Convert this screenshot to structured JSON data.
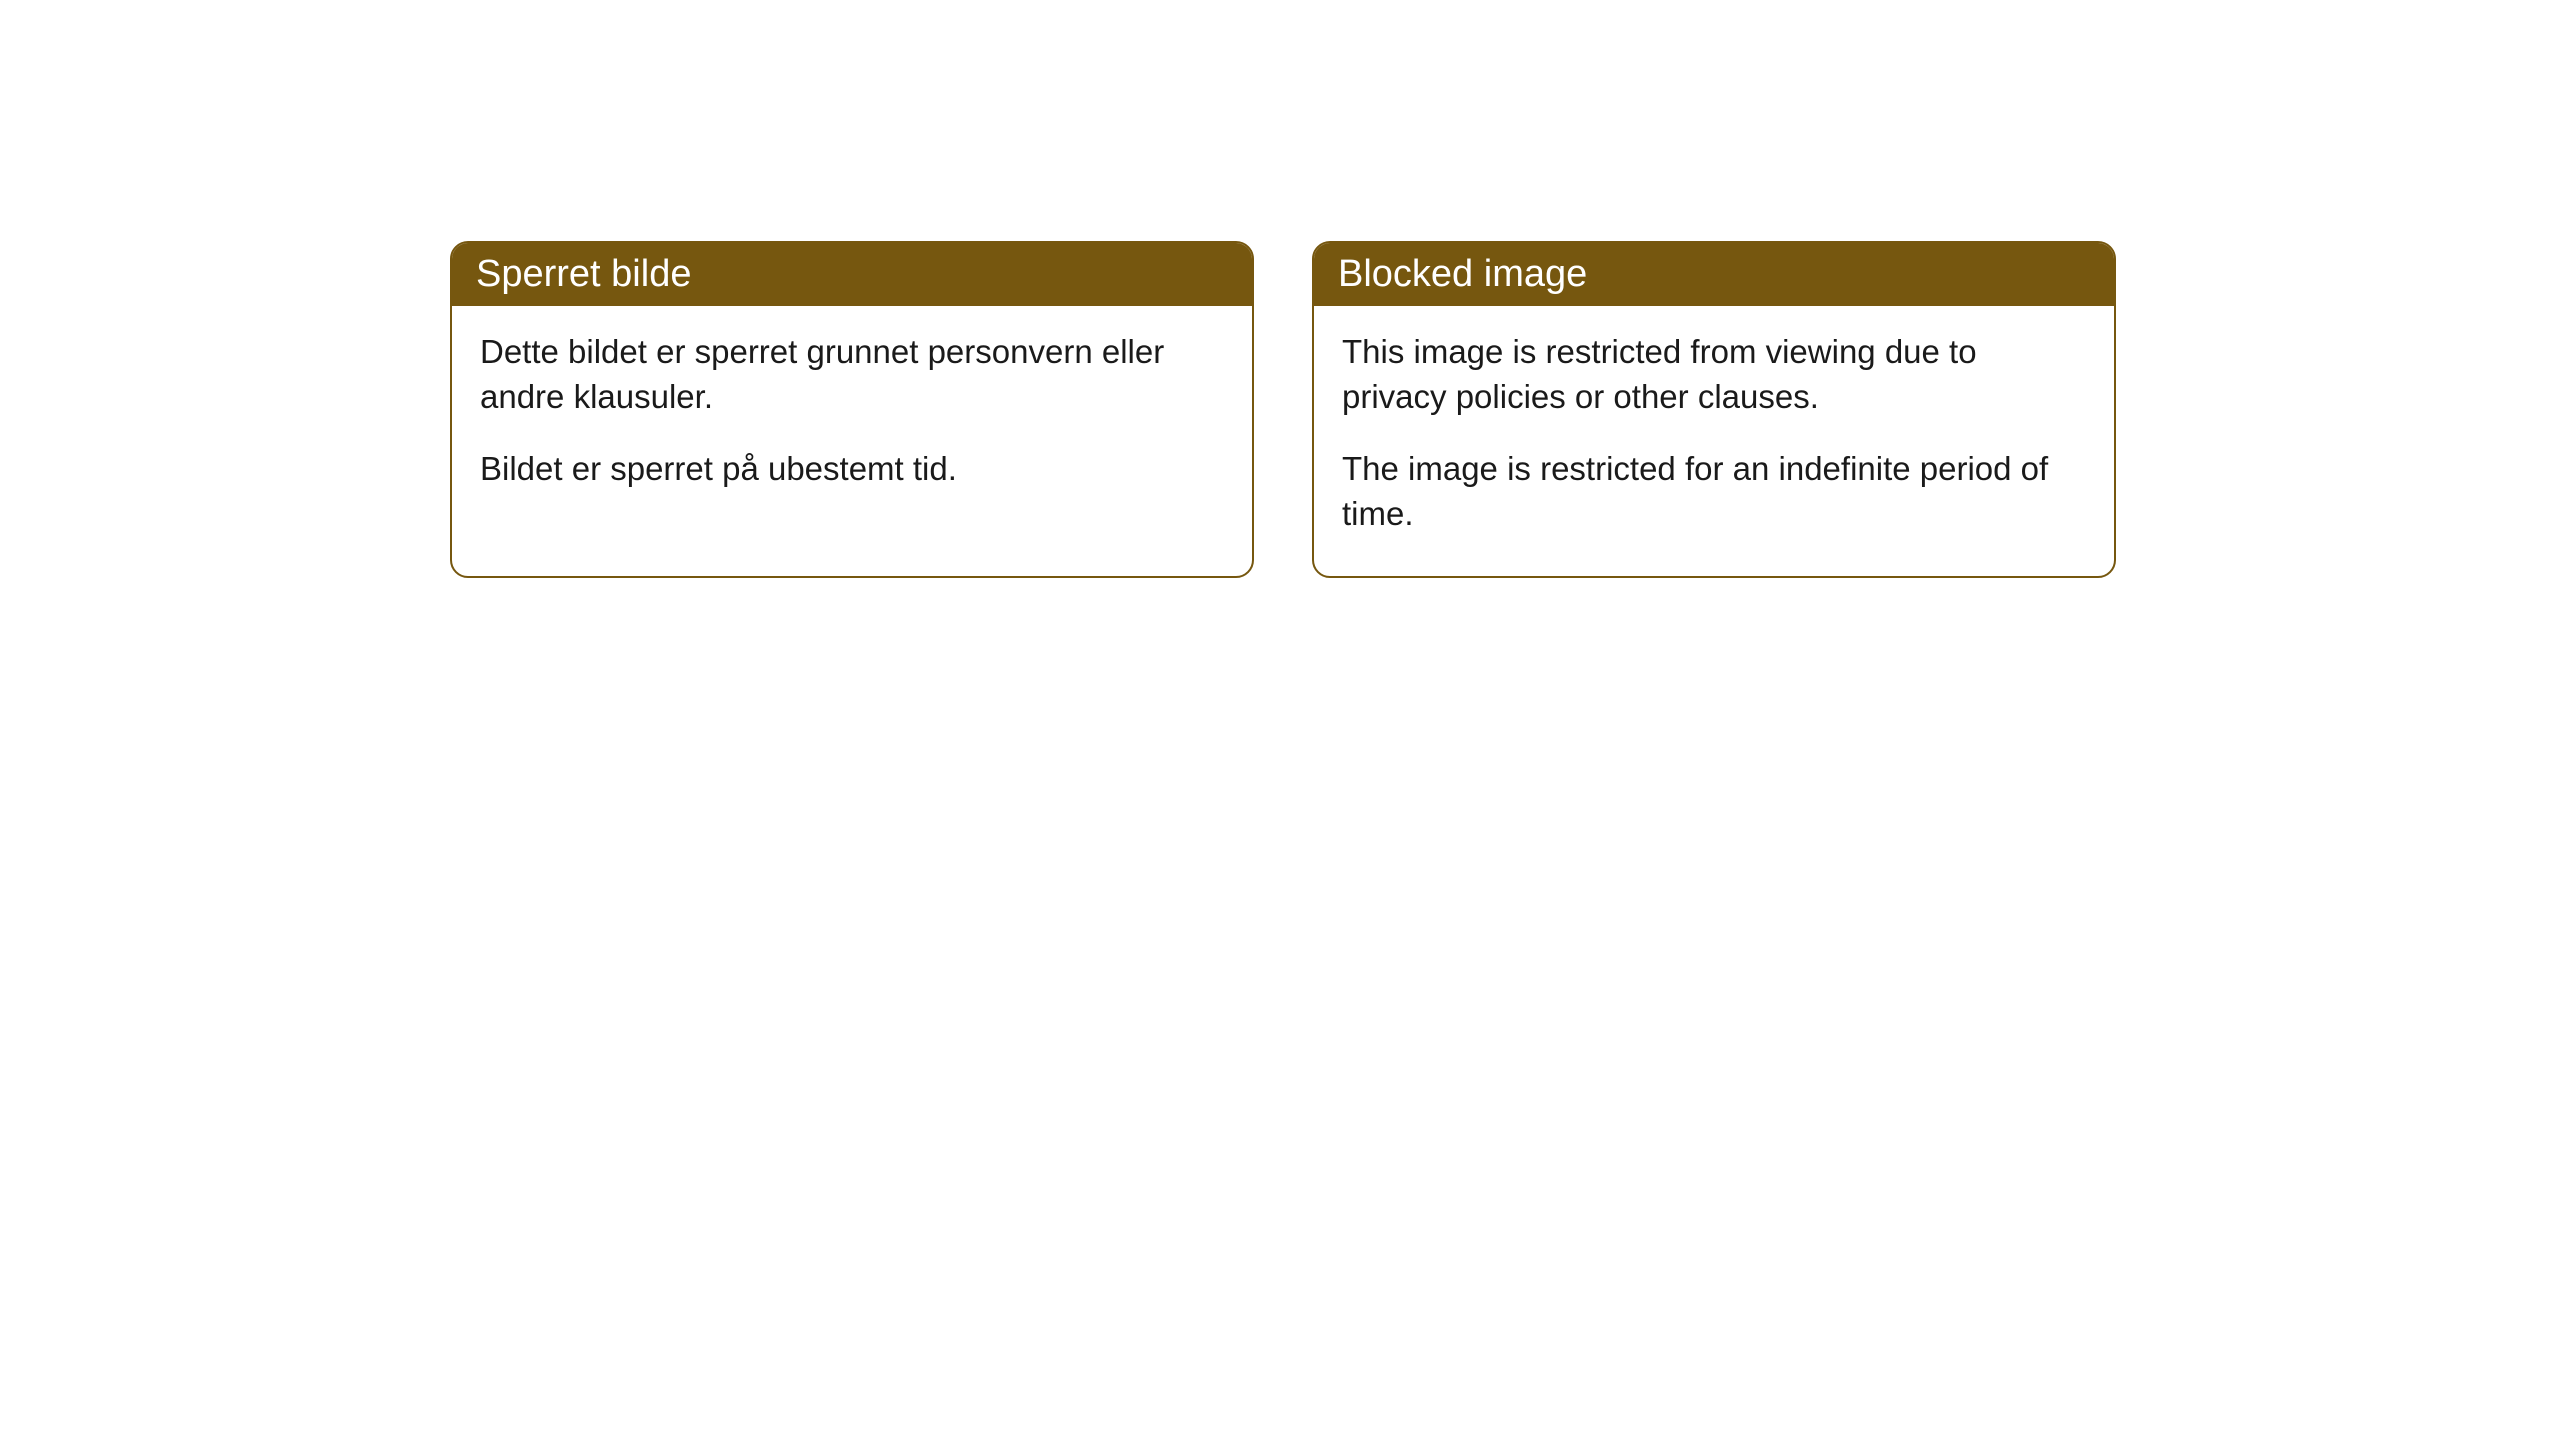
{
  "cards": [
    {
      "title": "Sperret bilde",
      "paragraph1": "Dette bildet er sperret grunnet personvern eller andre klausuler.",
      "paragraph2": "Bildet er sperret på ubestemt tid."
    },
    {
      "title": "Blocked image",
      "paragraph1": "This image is restricted from viewing due to privacy policies or other clauses.",
      "paragraph2": "The image is restricted for an indefinite period of time."
    }
  ],
  "styling": {
    "header_bg_color": "#76570f",
    "header_text_color": "#ffffff",
    "border_color": "#76570f",
    "body_bg_color": "#ffffff",
    "body_text_color": "#1a1a1a",
    "border_radius": 18,
    "title_fontsize": 38,
    "body_fontsize": 33
  }
}
